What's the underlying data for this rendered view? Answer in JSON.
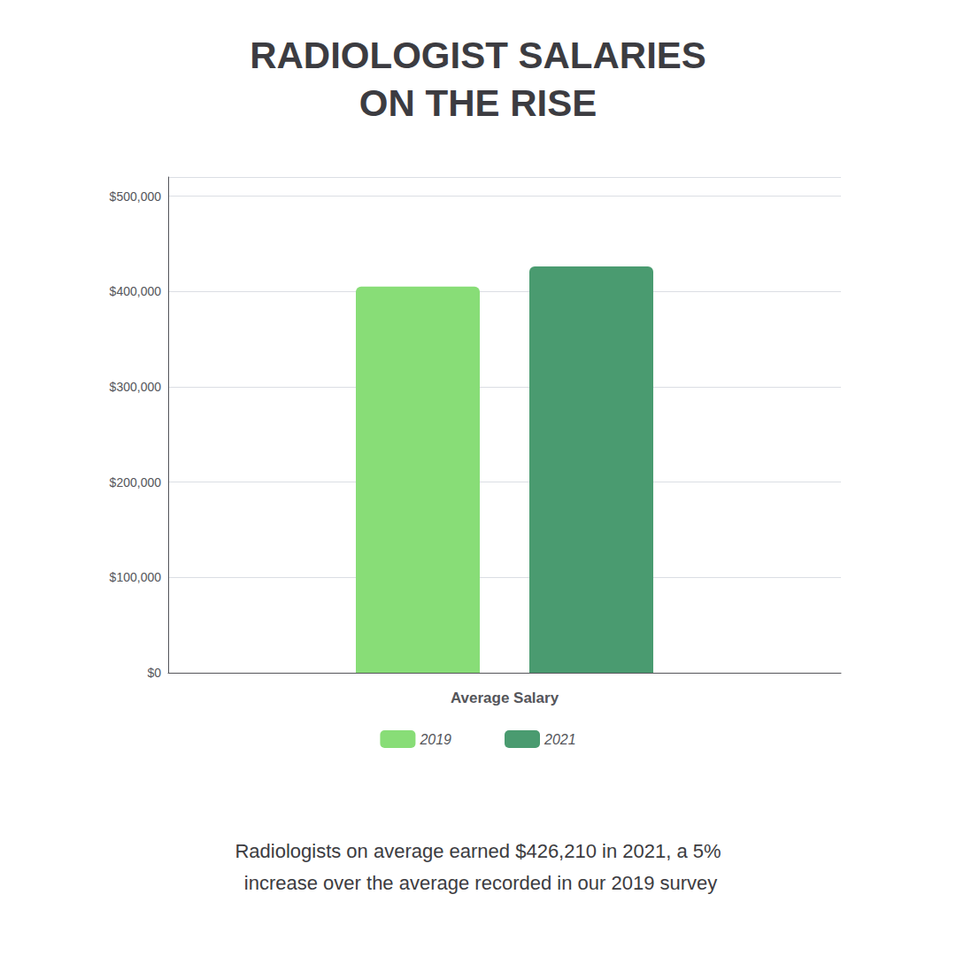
{
  "chart_data": {
    "type": "bar",
    "title": "RADIOLOGIST SALARIES\nON THE RISE",
    "subtitle": "Radiologists on average earned $426,210 in 2021, a 5%\n increase over the average recorded in our 2019 survey",
    "xlabel": "Average Salary",
    "categories": [
      null
    ],
    "series": [
      {
        "name": "2019",
        "color": "#88DD77",
        "values": [
          405000
        ]
      },
      {
        "name": "2021",
        "color": "#4A9B70",
        "values": [
          426210
        ]
      }
    ],
    "ylim": [
      0,
      520000
    ],
    "yticks": [
      {
        "value": 0,
        "label": "$0"
      },
      {
        "value": 100000,
        "label": "$100,000"
      },
      {
        "value": 200000,
        "label": "$200,000"
      },
      {
        "value": 300000,
        "label": "$300,000"
      },
      {
        "value": 400000,
        "label": "$400,000"
      },
      {
        "value": 500000,
        "label": "$500,000"
      }
    ],
    "grid": true,
    "legend": "bottom",
    "tick_labels": "y"
  }
}
